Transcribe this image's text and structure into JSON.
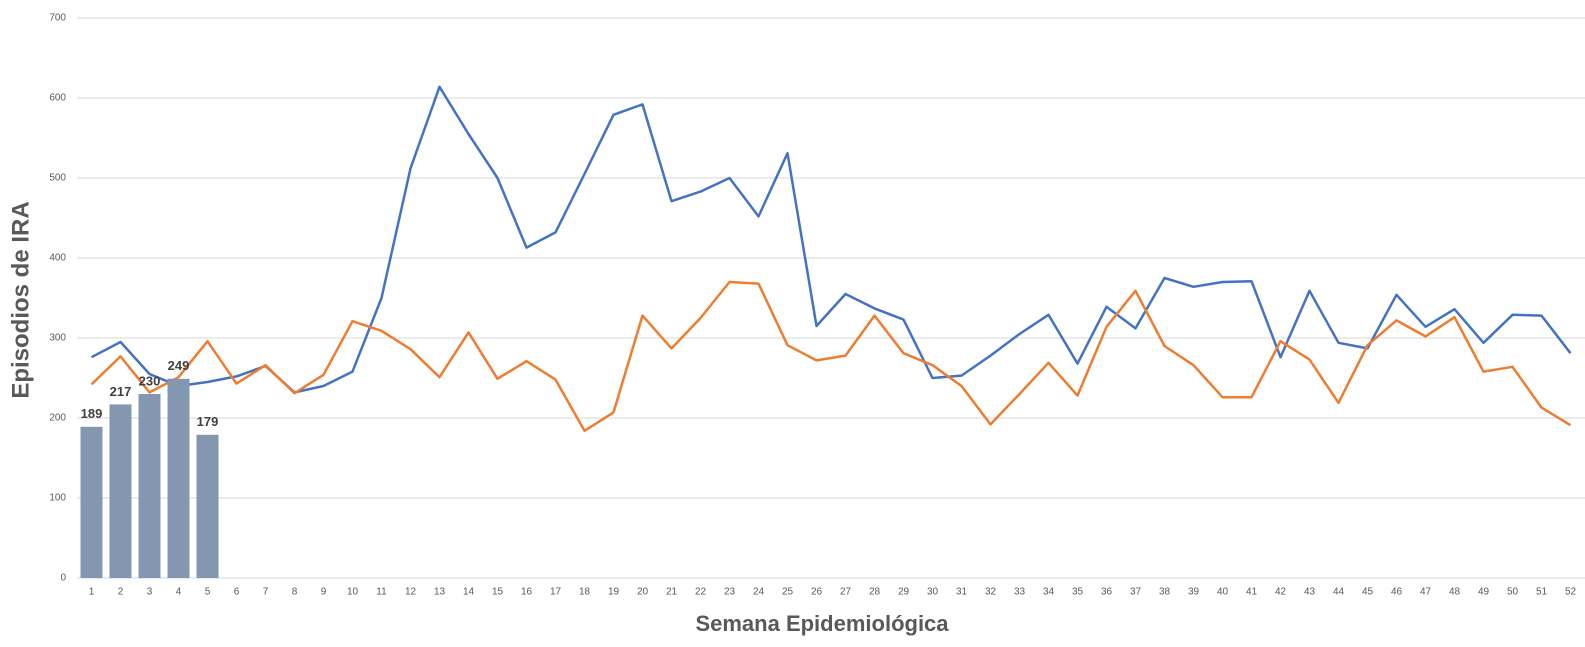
{
  "chart_data": {
    "type": "bar",
    "x_label": "Semana Epidemiológica",
    "y_label": "Episodios de IRA",
    "categories": [
      "1",
      "2",
      "3",
      "4",
      "5",
      "6",
      "7",
      "8",
      "9",
      "10",
      "11",
      "12",
      "13",
      "14",
      "15",
      "16",
      "17",
      "18",
      "19",
      "20",
      "21",
      "22",
      "23",
      "24",
      "25",
      "26",
      "27",
      "28",
      "29",
      "30",
      "31",
      "32",
      "33",
      "34",
      "35",
      "36",
      "37",
      "38",
      "39",
      "40",
      "41",
      "42",
      "43",
      "44",
      "45",
      "46",
      "47",
      "48",
      "49",
      "50",
      "51",
      "52"
    ],
    "ylim": [
      0,
      700
    ],
    "yticks": [
      0,
      100,
      200,
      300,
      400,
      500,
      600,
      700
    ],
    "grid": true,
    "series": [
      {
        "type": "line",
        "color": "#4472c4",
        "values": [
          276,
          295,
          255,
          240,
          245,
          252,
          265,
          232,
          240,
          258,
          350,
          512,
          614,
          555,
          500,
          413,
          432,
          505,
          579,
          592,
          471,
          483,
          500,
          452,
          531,
          315,
          355,
          337,
          323,
          250,
          253,
          278,
          305,
          329,
          268,
          339,
          312,
          375,
          364,
          370,
          371,
          276,
          359,
          294,
          287,
          354,
          314,
          336,
          294,
          329,
          328,
          281
        ]
      },
      {
        "type": "line",
        "color": "#ed7d31",
        "values": [
          242,
          277,
          232,
          251,
          296,
          243,
          266,
          231,
          254,
          321,
          309,
          286,
          251,
          307,
          249,
          271,
          248,
          184,
          207,
          328,
          287,
          325,
          370,
          368,
          291,
          272,
          278,
          328,
          281,
          266,
          240,
          192,
          230,
          269,
          228,
          314,
          359,
          290,
          266,
          226,
          226,
          296,
          273,
          219,
          291,
          322,
          302,
          326,
          258,
          264,
          213,
          191
        ]
      },
      {
        "type": "bar",
        "color": "#8497b0",
        "values": [
          189,
          217,
          230,
          249,
          179,
          null,
          null,
          null,
          null,
          null,
          null,
          null,
          null,
          null,
          null,
          null,
          null,
          null,
          null,
          null,
          null,
          null,
          null,
          null,
          null,
          null,
          null,
          null,
          null,
          null,
          null,
          null,
          null,
          null,
          null,
          null,
          null,
          null,
          null,
          null,
          null,
          null,
          null,
          null,
          null,
          null,
          null,
          null,
          null,
          null,
          null,
          null
        ]
      }
    ]
  }
}
